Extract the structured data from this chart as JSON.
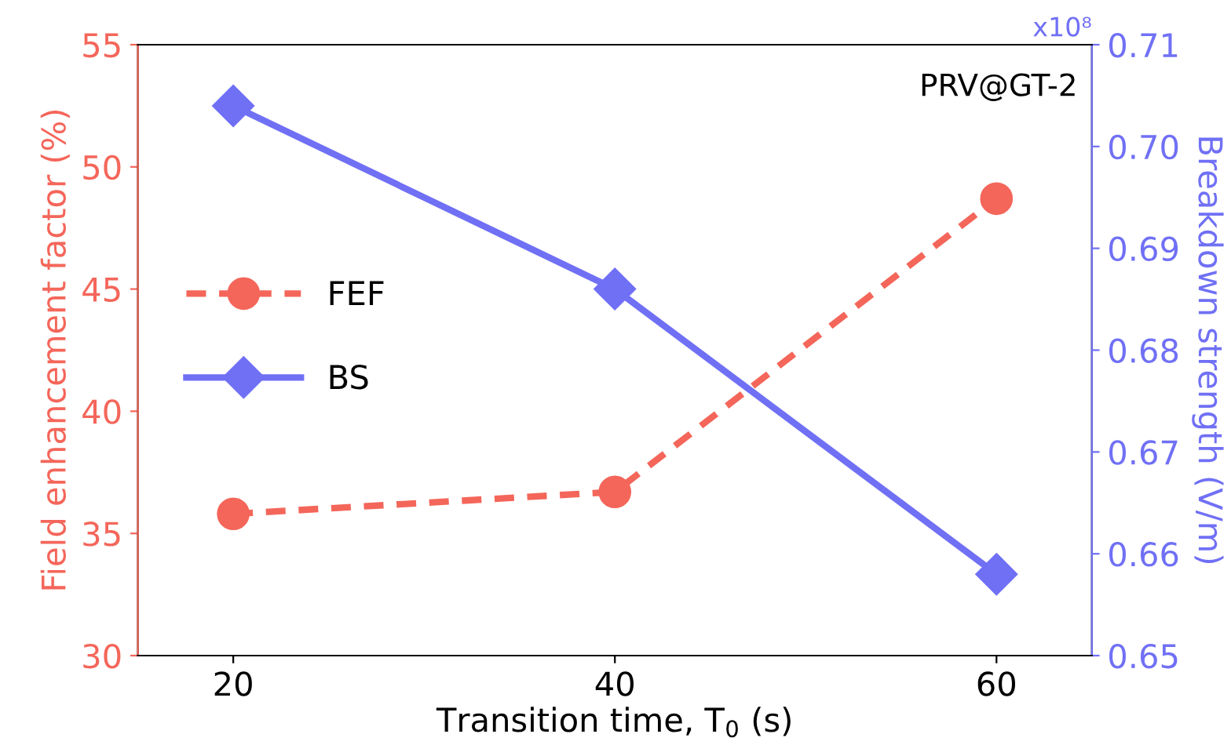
{
  "chart_data": {
    "type": "line",
    "xlabel": "Transition time, T$_{0}$ (s)",
    "ylabel": "Field enhancement factor (%)",
    "y2label": "Breakdown strength (V/m)",
    "x": [
      20,
      40,
      60
    ],
    "xlim": [
      15,
      65
    ],
    "xticks": [
      20,
      40,
      60
    ],
    "ylim": [
      30,
      55
    ],
    "yticks": [
      30,
      35,
      40,
      45,
      50,
      55
    ],
    "y2lim": [
      0.65,
      0.71
    ],
    "y2ticks": [
      {
        "value": 0.65,
        "label": "0.65"
      },
      {
        "value": 0.66,
        "label": "0.66"
      },
      {
        "value": 0.67,
        "label": "0.67"
      },
      {
        "value": 0.68,
        "label": "0.68"
      },
      {
        "value": 0.69,
        "label": "0.69"
      },
      {
        "value": 0.7,
        "label": "0.70"
      },
      {
        "value": 0.71,
        "label": "0.71"
      }
    ],
    "series": [
      {
        "name": "FEF",
        "color": "#f4665a",
        "values": [
          35.8,
          36.7,
          48.7
        ],
        "marker": "circle",
        "line_style": "dashed"
      },
      {
        "name": "BS",
        "color": "#7070f5",
        "values": [
          0.704,
          0.686,
          0.658
        ],
        "marker": "diamond",
        "line_style": "solid",
        "axis": "y2"
      }
    ],
    "annotations": [
      "PRV@GT-2",
      "x10⁸"
    ],
    "legend": "left",
    "grid": false
  }
}
